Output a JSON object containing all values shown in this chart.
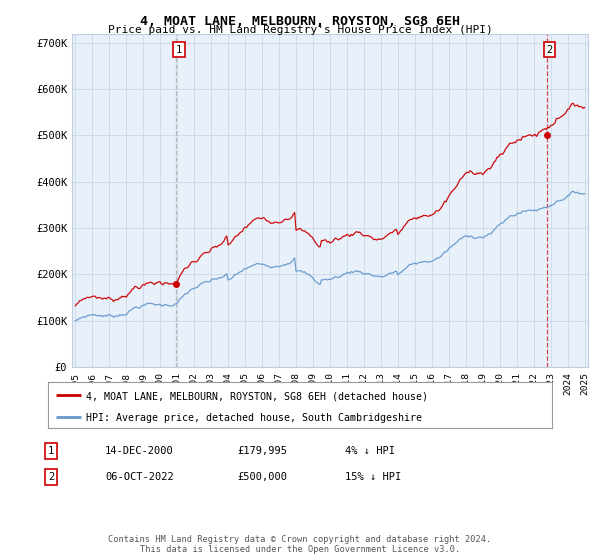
{
  "title": "4, MOAT LANE, MELBOURN, ROYSTON, SG8 6EH",
  "subtitle": "Price paid vs. HM Land Registry's House Price Index (HPI)",
  "bg_color": "#ffffff",
  "plot_bg_color": "#e8f0fa",
  "hpi_color": "#6699cc",
  "price_color": "#cc0000",
  "ylim": [
    0,
    720000
  ],
  "yticks": [
    0,
    100000,
    200000,
    300000,
    400000,
    500000,
    600000,
    700000
  ],
  "ytick_labels": [
    "£0",
    "£100K",
    "£200K",
    "£300K",
    "£400K",
    "£500K",
    "£600K",
    "£700K"
  ],
  "x_start_year": 1995,
  "x_end_year": 2025,
  "sale1_date": 2000.95,
  "sale1_price": 179995,
  "sale1_label": "1",
  "sale2_date": 2022.77,
  "sale2_price": 500000,
  "sale2_label": "2",
  "legend_line1": "4, MOAT LANE, MELBOURN, ROYSTON, SG8 6EH (detached house)",
  "legend_line2": "HPI: Average price, detached house, South Cambridgeshire",
  "note1_label": "1",
  "note1_date": "14-DEC-2000",
  "note1_price": "£179,995",
  "note1_hpi": "4% ↓ HPI",
  "note2_label": "2",
  "note2_date": "06-OCT-2022",
  "note2_price": "£500,000",
  "note2_hpi": "15% ↓ HPI",
  "footer": "Contains HM Land Registry data © Crown copyright and database right 2024.\nThis data is licensed under the Open Government Licence v3.0."
}
